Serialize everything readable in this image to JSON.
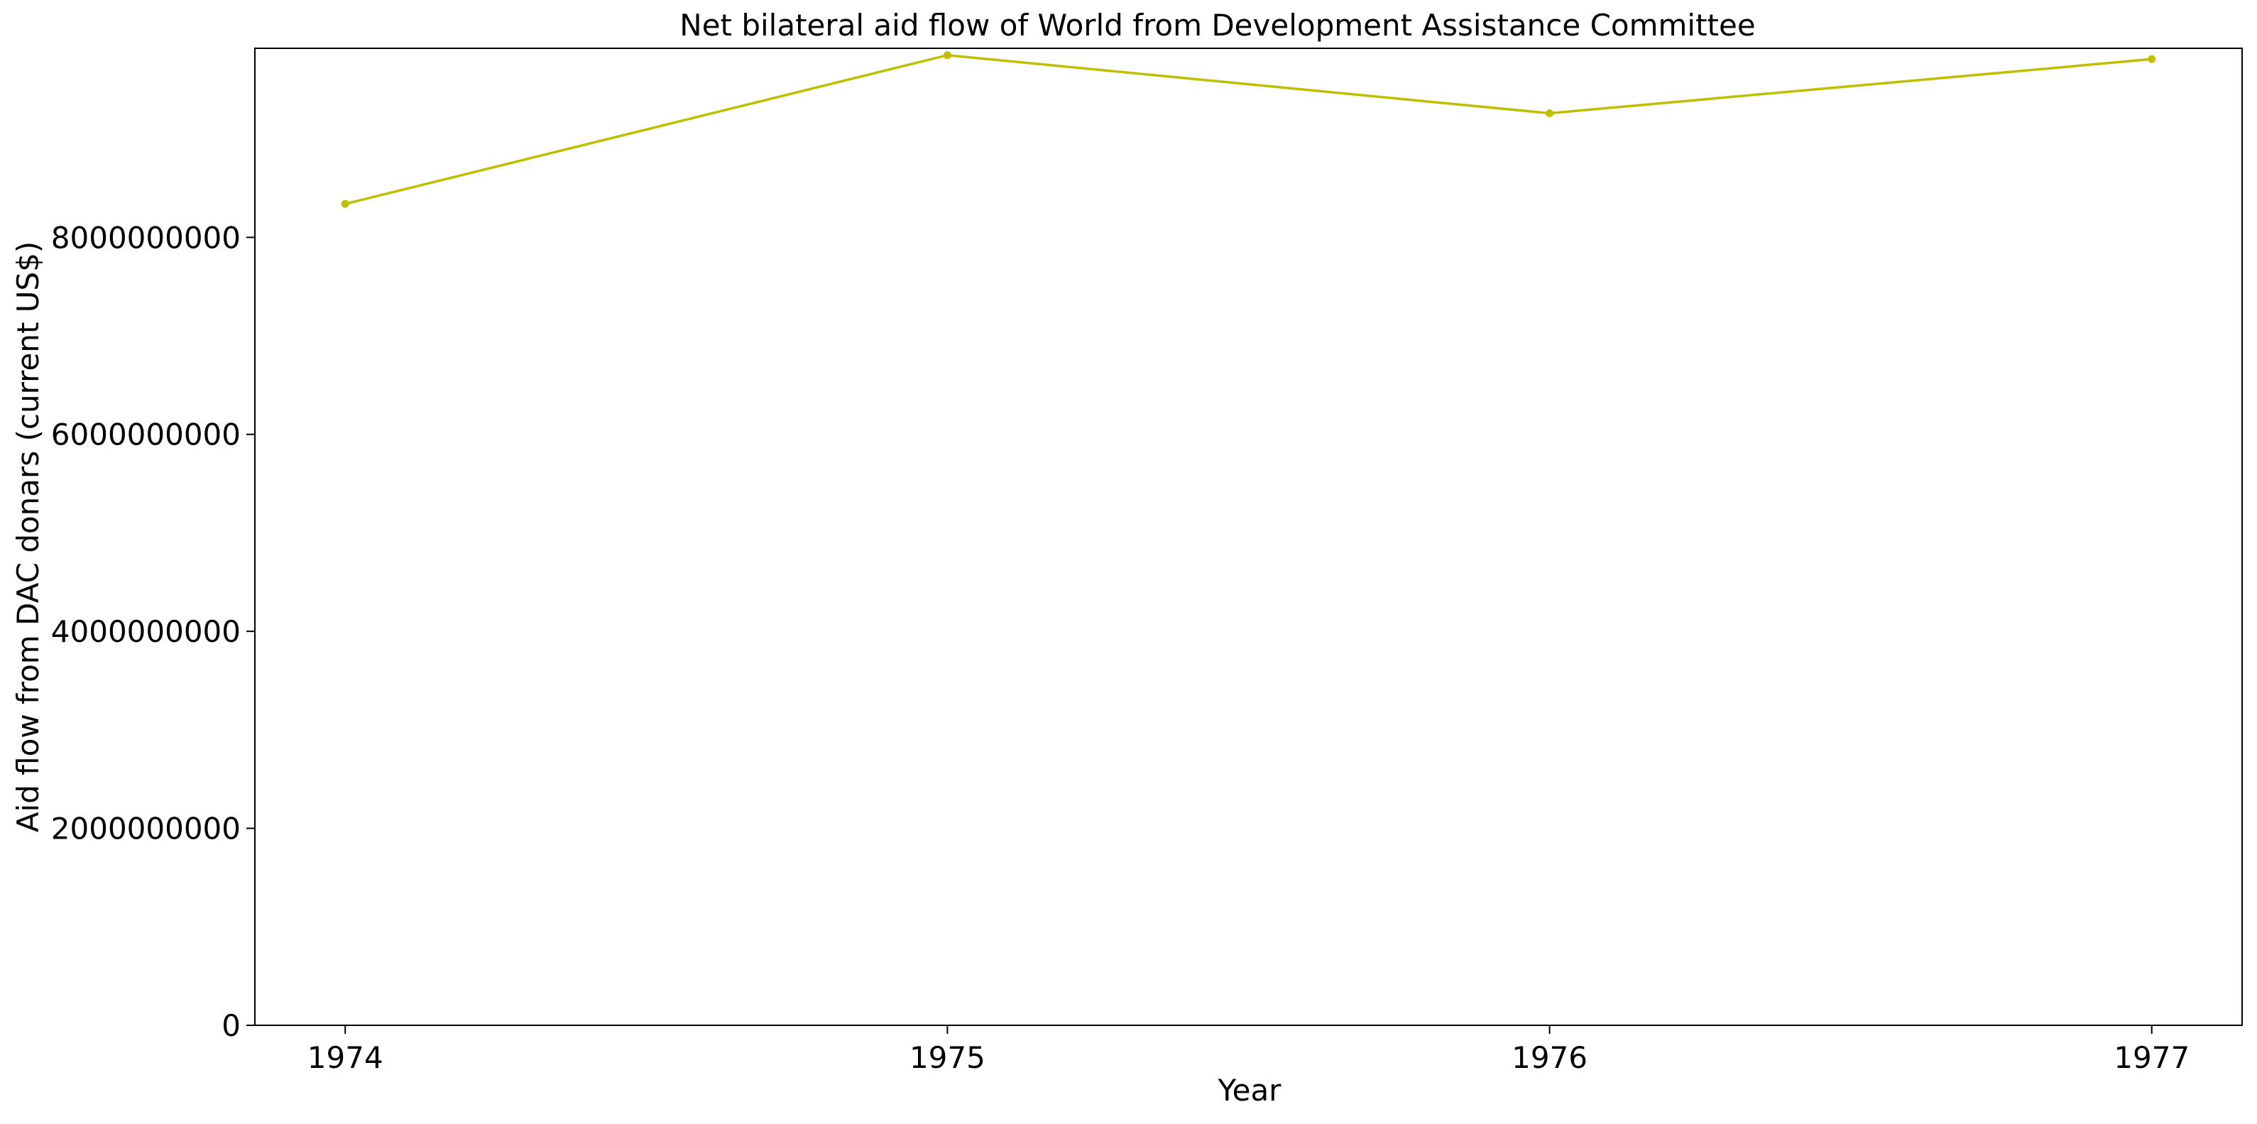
{
  "chart_data": {
    "type": "line",
    "title": "Net bilateral aid flow of World from Development Assistance Committee",
    "xlabel": "Year",
    "ylabel": "Aid flow from DAC donars (current US$)",
    "x": [
      1974,
      1975,
      1976,
      1977
    ],
    "x_tick_labels": [
      "1974",
      "1975",
      "1976",
      "1977"
    ],
    "y_ticks": [
      0,
      2000000000,
      4000000000,
      6000000000,
      8000000000
    ],
    "y_tick_labels": [
      "0",
      "2000000000",
      "4000000000",
      "6000000000",
      "8000000000"
    ],
    "ylim": [
      0,
      9920000000
    ],
    "xlim": [
      1973.85,
      1977.15
    ],
    "series": [
      {
        "values": [
          8340000000,
          9850000000,
          9260000000,
          9810000000
        ],
        "color": "#bfbf00",
        "marker": "circle"
      }
    ],
    "grid": false,
    "legend": "none"
  }
}
